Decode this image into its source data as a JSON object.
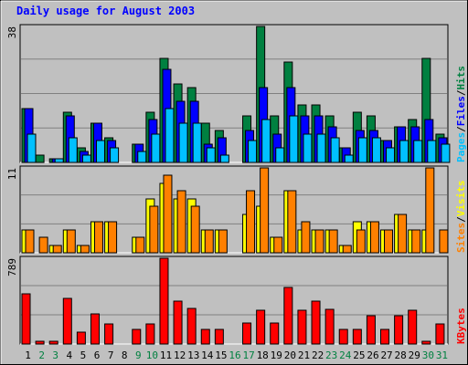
{
  "title": "Daily usage for August 2003",
  "colors": {
    "hits": "#008040",
    "files": "#0000ff",
    "pages": "#00c0ff",
    "visits": "#ffff00",
    "sites": "#ff8000",
    "kbytes": "#ff0000",
    "title_text": "#0000ff",
    "day_weekday": "#000000",
    "day_weekend": "#008040",
    "separator_text": "#000000"
  },
  "chart_data": {
    "type": "bar",
    "title": "Daily usage for August 2003",
    "categories": [
      "1",
      "2",
      "3",
      "4",
      "5",
      "6",
      "7",
      "8",
      "9",
      "10",
      "11",
      "12",
      "13",
      "14",
      "15",
      "16",
      "17",
      "18",
      "19",
      "20",
      "21",
      "22",
      "23",
      "24",
      "25",
      "26",
      "27",
      "28",
      "29",
      "30",
      "31"
    ],
    "weekend_days": [
      "2",
      "3",
      "9",
      "10",
      "16",
      "17",
      "23",
      "24",
      "30",
      "31"
    ],
    "panels": [
      {
        "id": "top",
        "ymax_label": "38",
        "ylim": [
          0,
          38
        ],
        "legend": [
          "Pages",
          "Files",
          "Hits"
        ],
        "series": [
          {
            "name": "Hits",
            "values": [
              15,
              2,
              1,
              14,
              4,
              11,
              7,
              0,
              5,
              14,
              29,
              22,
              21,
              11,
              9,
              0,
              13,
              38,
              13,
              28,
              16,
              16,
              13,
              4,
              14,
              13,
              6,
              10,
              12,
              29,
              8
            ]
          },
          {
            "name": "Files",
            "values": [
              15,
              0,
              1,
              13,
              3,
              11,
              6,
              0,
              5,
              12,
              26,
              17,
              17,
              5,
              7,
              0,
              9,
              21,
              8,
              21,
              13,
              13,
              10,
              4,
              9,
              9,
              6,
              10,
              10,
              12,
              7
            ]
          },
          {
            "name": "Pages",
            "values": [
              8,
              0,
              1,
              7,
              2,
              6,
              4,
              0,
              3,
              8,
              15,
              11,
              11,
              4,
              2,
              0,
              6,
              12,
              4,
              13,
              8,
              8,
              7,
              2,
              7,
              7,
              4,
              6,
              6,
              6,
              5
            ]
          }
        ]
      },
      {
        "id": "middle",
        "ymax_label": "11",
        "ylim": [
          0,
          11
        ],
        "legend": [
          "Sites",
          "Visits"
        ],
        "series": [
          {
            "name": "Visits",
            "values": [
              3,
              0,
              1,
              3,
              1,
              4,
              4,
              0,
              2,
              7,
              9,
              7,
              7,
              3,
              3,
              0,
              5,
              6,
              2,
              8,
              3,
              3,
              3,
              1,
              4,
              4,
              3,
              5,
              3,
              3,
              0
            ]
          },
          {
            "name": "Sites",
            "values": [
              3,
              2,
              1,
              3,
              1,
              4,
              4,
              0,
              2,
              6,
              10,
              8,
              6,
              3,
              3,
              0,
              8,
              11,
              2,
              8,
              4,
              3,
              3,
              1,
              3,
              4,
              3,
              5,
              3,
              11,
              3
            ]
          }
        ]
      },
      {
        "id": "bottom",
        "ymax_label": "789",
        "ylim": [
          0,
          789
        ],
        "legend": [
          "KBytes"
        ],
        "series": [
          {
            "name": "KBytes",
            "values": [
              465,
              27,
              27,
              418,
              110,
              280,
              182,
              0,
              134,
              182,
              789,
              393,
              331,
              134,
              134,
              0,
              197,
              307,
              197,
              520,
              307,
              393,
              319,
              134,
              134,
              263,
              134,
              263,
              307,
              27,
              185
            ]
          }
        ]
      }
    ]
  }
}
